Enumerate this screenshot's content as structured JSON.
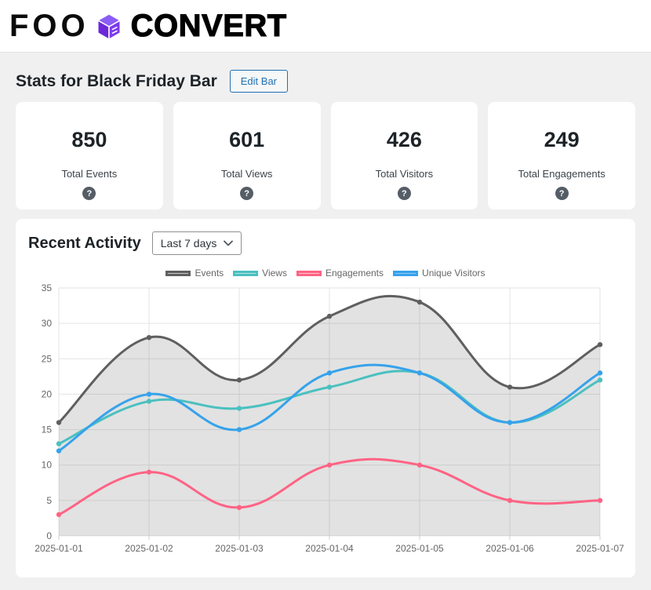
{
  "brand": {
    "logo_part1": "FOO",
    "logo_part2": "CONVERT",
    "logo_icon": "cube-icon",
    "logo_icon_color": "#7c3aed"
  },
  "page": {
    "title": "Stats for Black Friday Bar",
    "edit_button_label": "Edit Bar"
  },
  "icons": {
    "help_glyph": "?"
  },
  "stats": [
    {
      "value": "850",
      "label": "Total Events"
    },
    {
      "value": "601",
      "label": "Total Views"
    },
    {
      "value": "426",
      "label": "Total Visitors"
    },
    {
      "value": "249",
      "label": "Total Engagements"
    }
  ],
  "activity": {
    "title": "Recent Activity",
    "range_selected": "Last 7 days"
  },
  "chart_data": {
    "type": "line",
    "title": "",
    "xlabel": "",
    "ylabel": "",
    "x": [
      "2025-01-01",
      "2025-01-02",
      "2025-01-03",
      "2025-01-04",
      "2025-01-05",
      "2025-01-06",
      "2025-01-07"
    ],
    "series": [
      {
        "name": "Events",
        "values": [
          16,
          28,
          22,
          31,
          33,
          21,
          27
        ],
        "color": "#5f5f5f",
        "legend_fill": "#c9c9c9",
        "fill_to_zero": true,
        "fill": "rgba(125,125,125,0.22)"
      },
      {
        "name": "Views",
        "values": [
          13,
          19,
          18,
          21,
          23,
          16,
          22
        ],
        "color": "#4bc0c0",
        "legend_fill": "#b5e3df",
        "fill_to_zero": false
      },
      {
        "name": "Engagements",
        "values": [
          3,
          9,
          4,
          10,
          10,
          5,
          5
        ],
        "color": "#ff6384",
        "legend_fill": "#ffc6d2",
        "fill_to_zero": false
      },
      {
        "name": "Unique Visitors",
        "values": [
          12,
          20,
          15,
          23,
          23,
          16,
          23
        ],
        "color": "#36a2eb",
        "legend_fill": "#8ec9f3",
        "fill_to_zero": false
      }
    ],
    "ylim": [
      0,
      35
    ],
    "yticks": [
      0,
      5,
      10,
      15,
      20,
      25,
      30,
      35
    ],
    "grid": true,
    "legend_position": "top"
  }
}
